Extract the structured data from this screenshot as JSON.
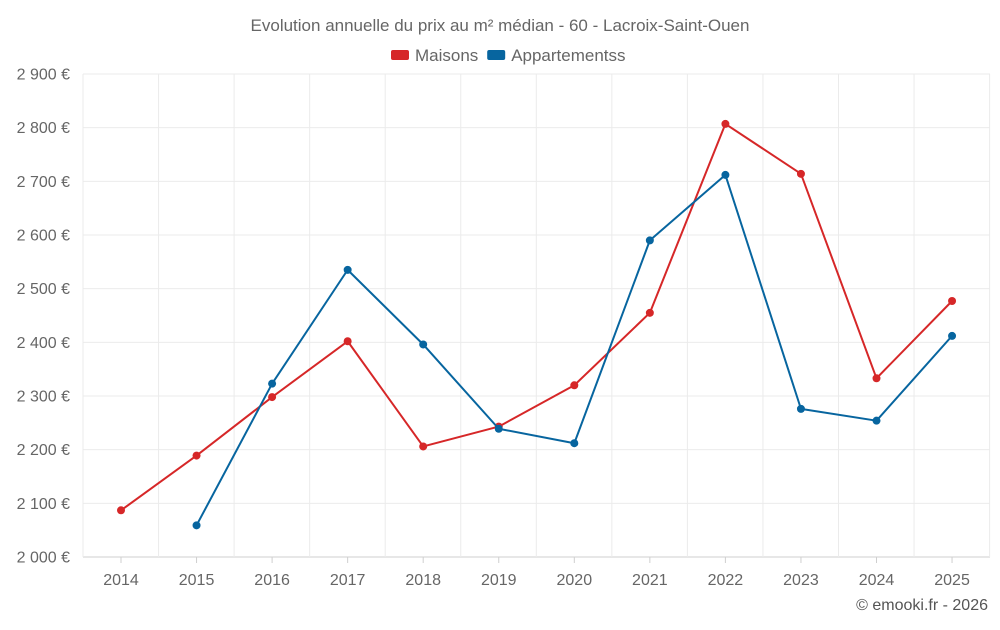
{
  "chart_data": {
    "type": "line",
    "title": "Evolution annuelle du prix au m² médian - 60 - Lacroix-Saint-Ouen",
    "categories": [
      "2014",
      "2015",
      "2016",
      "2017",
      "2018",
      "2019",
      "2020",
      "2021",
      "2022",
      "2023",
      "2024",
      "2025"
    ],
    "series": [
      {
        "name": "Maisons",
        "color": "#d62728",
        "values": [
          2087,
          2189,
          2298,
          2402,
          2206,
          2243,
          2320,
          2455,
          2807,
          2714,
          2333,
          2477
        ]
      },
      {
        "name": "Appartementss",
        "color": "#07659f",
        "values": [
          null,
          2059,
          2323,
          2535,
          2396,
          2239,
          2212,
          2590,
          2712,
          2276,
          2254,
          2412
        ]
      }
    ],
    "ylim": [
      2000,
      2900
    ],
    "yticks": [
      2000,
      2100,
      2200,
      2300,
      2400,
      2500,
      2600,
      2700,
      2800,
      2900
    ],
    "ytick_labels": [
      "2 000 €",
      "2 100 €",
      "2 200 €",
      "2 300 €",
      "2 400 €",
      "2 500 €",
      "2 600 €",
      "2 700 €",
      "2 800 €",
      "2 900 €"
    ],
    "xlabel": "",
    "ylabel": "",
    "grid": true,
    "legend": "top-center"
  },
  "credit": "© emooki.fr - 2026"
}
